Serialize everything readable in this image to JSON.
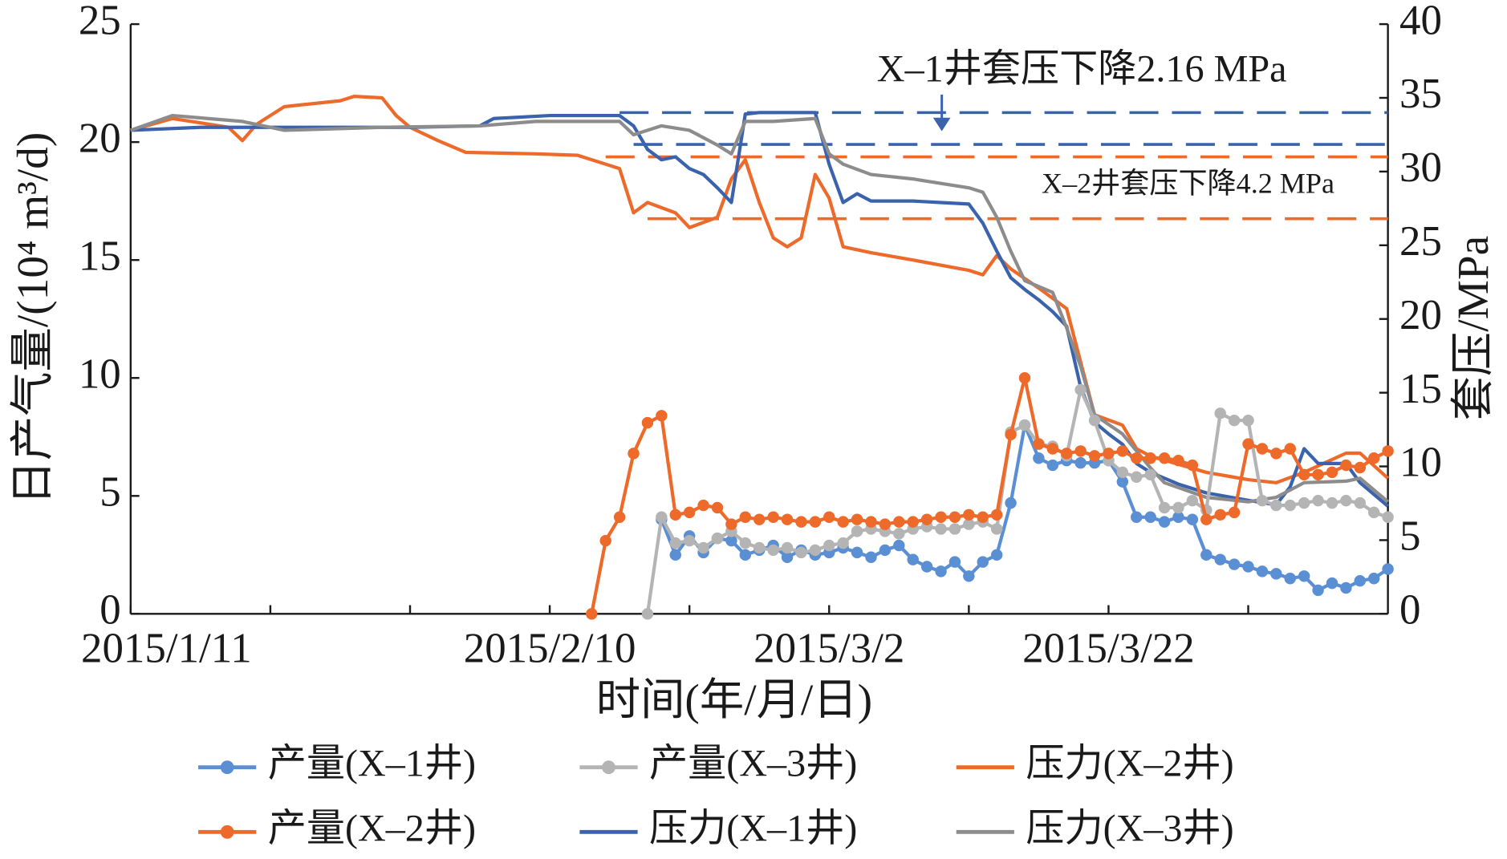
{
  "chart_data": {
    "type": "line",
    "xlabel": "时间(年/月/日)",
    "ylabel": "日产气量/(10⁴ m³/d)",
    "y2label": "套压/MPa",
    "xlim": [
      "2015/1/11",
      "2015/4/11"
    ],
    "xticks": [
      "2015/1/11",
      "2015/2/10",
      "2015/3/2",
      "2015/3/22"
    ],
    "xminor_ticks": [
      "2015/1/21",
      "2015/1/31",
      "2015/2/20",
      "2015/3/12",
      "2015/4/1"
    ],
    "ylim": [
      0,
      25
    ],
    "yticks": [
      0,
      5,
      10,
      15,
      20,
      25
    ],
    "y2lim": [
      0,
      40
    ],
    "y2ticks": [
      0,
      5,
      10,
      15,
      20,
      25,
      30,
      35,
      40
    ],
    "series": [
      {
        "name": "产量(X–1井)",
        "color": "#5b8fd4",
        "marker": true,
        "x": [
          "2015/2/18",
          "2015/2/19",
          "2015/2/20",
          "2015/2/21",
          "2015/2/22",
          "2015/2/23",
          "2015/2/24",
          "2015/2/25",
          "2015/2/26",
          "2015/2/27",
          "2015/2/28",
          "2015/3/1",
          "2015/3/2",
          "2015/3/3",
          "2015/3/4",
          "2015/3/5",
          "2015/3/6",
          "2015/3/7",
          "2015/3/8",
          "2015/3/9",
          "2015/3/10",
          "2015/3/11",
          "2015/3/12",
          "2015/3/13",
          "2015/3/14",
          "2015/3/15",
          "2015/3/16",
          "2015/3/17",
          "2015/3/18",
          "2015/3/19",
          "2015/3/20",
          "2015/3/21",
          "2015/3/22",
          "2015/3/23",
          "2015/3/24",
          "2015/3/25",
          "2015/3/26",
          "2015/3/27",
          "2015/3/28",
          "2015/3/29",
          "2015/3/30",
          "2015/3/31",
          "2015/4/1",
          "2015/4/2",
          "2015/4/3",
          "2015/4/4",
          "2015/4/5",
          "2015/4/6",
          "2015/4/7",
          "2015/4/8",
          "2015/4/9",
          "2015/4/10",
          "2015/4/11"
        ],
        "values": [
          4.0,
          2.5,
          3.3,
          2.6,
          3.2,
          3.1,
          2.5,
          2.7,
          2.9,
          2.4,
          2.7,
          2.5,
          2.6,
          2.8,
          2.6,
          2.4,
          2.7,
          2.9,
          2.3,
          2.0,
          1.8,
          2.2,
          1.6,
          2.2,
          2.5,
          4.7,
          8.0,
          6.6,
          6.3,
          6.5,
          6.4,
          6.4,
          6.5,
          5.6,
          4.1,
          4.1,
          3.9,
          4.1,
          4.0,
          2.5,
          2.3,
          2.1,
          2.0,
          1.8,
          1.7,
          1.5,
          1.6,
          1.0,
          1.3,
          1.1,
          1.4,
          1.5,
          1.9
        ]
      },
      {
        "name": "产量(X–3井)",
        "color": "#b4b4b4",
        "marker": true,
        "x": [
          "2015/2/17",
          "2015/2/18",
          "2015/2/19",
          "2015/2/20",
          "2015/2/21",
          "2015/2/22",
          "2015/2/23",
          "2015/2/24",
          "2015/2/25",
          "2015/2/26",
          "2015/2/27",
          "2015/2/28",
          "2015/3/1",
          "2015/3/2",
          "2015/3/3",
          "2015/3/4",
          "2015/3/5",
          "2015/3/6",
          "2015/3/7",
          "2015/3/8",
          "2015/3/9",
          "2015/3/10",
          "2015/3/11",
          "2015/3/12",
          "2015/3/13",
          "2015/3/14",
          "2015/3/15",
          "2015/3/16",
          "2015/3/17",
          "2015/3/18",
          "2015/3/19",
          "2015/3/20",
          "2015/3/21",
          "2015/3/22",
          "2015/3/23",
          "2015/3/24",
          "2015/3/25",
          "2015/3/26",
          "2015/3/27",
          "2015/3/28",
          "2015/3/29",
          "2015/3/30",
          "2015/3/31",
          "2015/4/1",
          "2015/4/2",
          "2015/4/3",
          "2015/4/4",
          "2015/4/5",
          "2015/4/6",
          "2015/4/7",
          "2015/4/8",
          "2015/4/9",
          "2015/4/10",
          "2015/4/11"
        ],
        "values": [
          0,
          4.1,
          3.0,
          3.1,
          2.8,
          3.2,
          3.5,
          3.0,
          2.8,
          2.7,
          2.8,
          2.6,
          2.7,
          2.9,
          3.0,
          3.5,
          3.6,
          3.5,
          3.4,
          3.6,
          3.7,
          3.6,
          3.6,
          3.8,
          3.9,
          3.6,
          7.7,
          8.0,
          7.2,
          7.1,
          6.7,
          9.5,
          8.2,
          6.5,
          6.0,
          5.8,
          5.9,
          4.5,
          4.5,
          4.8,
          4.4,
          8.5,
          8.2,
          8.2,
          4.8,
          4.6,
          4.6,
          4.7,
          4.8,
          4.7,
          4.8,
          4.7,
          4.3,
          4.1
        ]
      },
      {
        "name": "压力(X–2井)",
        "color": "#ed6a2a",
        "marker": false,
        "axis": "y2",
        "x": [
          "2015/1/11",
          "2015/1/14",
          "2015/1/16",
          "2015/1/18",
          "2015/1/19",
          "2015/1/20",
          "2015/1/22",
          "2015/1/26",
          "2015/1/27",
          "2015/1/29",
          "2015/1/30",
          "2015/1/31",
          "2015/2/2",
          "2015/2/4",
          "2015/2/9",
          "2015/2/12",
          "2015/2/15",
          "2015/2/16",
          "2015/2/17",
          "2015/2/19",
          "2015/2/20",
          "2015/2/22",
          "2015/2/23",
          "2015/2/24",
          "2015/2/25",
          "2015/2/26",
          "2015/2/27",
          "2015/2/28",
          "2015/3/1",
          "2015/3/2",
          "2015/3/3",
          "2015/3/5",
          "2015/3/8",
          "2015/3/12",
          "2015/3/13",
          "2015/3/14",
          "2015/3/15",
          "2015/3/17",
          "2015/3/19",
          "2015/3/20",
          "2015/3/21",
          "2015/3/23",
          "2015/3/24",
          "2015/3/25",
          "2015/3/29",
          "2015/4/1",
          "2015/4/3",
          "2015/4/5",
          "2015/4/8",
          "2015/4/9",
          "2015/4/11"
        ],
        "values": [
          32.8,
          33.6,
          33.3,
          33.0,
          32.1,
          33.2,
          34.4,
          34.8,
          35.1,
          35.0,
          33.8,
          33.0,
          32.1,
          31.3,
          31.2,
          31.1,
          30.2,
          27.2,
          27.9,
          27.2,
          26.2,
          26.9,
          29.5,
          30.8,
          27.9,
          25.5,
          24.9,
          25.5,
          29.8,
          28.2,
          24.9,
          24.5,
          24.0,
          23.3,
          23.0,
          24.3,
          23.4,
          22.1,
          20.7,
          17.1,
          13.5,
          12.8,
          11.2,
          10.7,
          9.6,
          9.1,
          8.9,
          9.6,
          10.9,
          10.9,
          9.2
        ]
      },
      {
        "name": "产量(X–2井)",
        "color": "#ed6a2a",
        "marker": true,
        "x": [
          "2015/2/13",
          "2015/2/14",
          "2015/2/15",
          "2015/2/16",
          "2015/2/17",
          "2015/2/18",
          "2015/2/19",
          "2015/2/20",
          "2015/2/21",
          "2015/2/22",
          "2015/2/23",
          "2015/2/24",
          "2015/2/25",
          "2015/2/26",
          "2015/2/27",
          "2015/2/28",
          "2015/3/1",
          "2015/3/2",
          "2015/3/3",
          "2015/3/4",
          "2015/3/5",
          "2015/3/6",
          "2015/3/7",
          "2015/3/8",
          "2015/3/9",
          "2015/3/10",
          "2015/3/11",
          "2015/3/12",
          "2015/3/13",
          "2015/3/14",
          "2015/3/15",
          "2015/3/16",
          "2015/3/17",
          "2015/3/18",
          "2015/3/19",
          "2015/3/20",
          "2015/3/21",
          "2015/3/22",
          "2015/3/23",
          "2015/3/24",
          "2015/3/25",
          "2015/3/26",
          "2015/3/27",
          "2015/3/28",
          "2015/3/29",
          "2015/3/30",
          "2015/3/31",
          "2015/4/1",
          "2015/4/2",
          "2015/4/3",
          "2015/4/4",
          "2015/4/5",
          "2015/4/6",
          "2015/4/7",
          "2015/4/8",
          "2015/4/9",
          "2015/4/10",
          "2015/4/11"
        ],
        "values": [
          0,
          3.1,
          4.1,
          6.8,
          8.1,
          8.4,
          4.2,
          4.3,
          4.6,
          4.5,
          3.8,
          4.1,
          4.0,
          4.1,
          4.0,
          3.9,
          3.9,
          4.1,
          3.9,
          4.0,
          3.9,
          3.8,
          3.9,
          3.9,
          4.0,
          4.1,
          4.1,
          4.2,
          4.1,
          4.2,
          7.6,
          10.0,
          7.2,
          7.0,
          6.8,
          6.9,
          6.7,
          6.8,
          6.9,
          6.6,
          6.6,
          6.6,
          6.5,
          6.3,
          4.0,
          4.2,
          4.3,
          7.2,
          7.0,
          6.8,
          7.0,
          5.9,
          5.9,
          6.0,
          6.3,
          6.2,
          6.6,
          6.9
        ]
      },
      {
        "name": "压力(X–1井)",
        "color": "#3b63ad",
        "marker": false,
        "axis": "y2",
        "x": [
          "2015/1/11",
          "2015/1/16",
          "2015/1/23",
          "2015/1/31",
          "2015/2/5",
          "2015/2/6",
          "2015/2/10",
          "2015/2/15",
          "2015/2/16",
          "2015/2/17",
          "2015/2/18",
          "2015/2/19",
          "2015/2/20",
          "2015/2/21",
          "2015/2/22",
          "2015/2/23",
          "2015/2/24",
          "2015/2/25",
          "2015/3/1",
          "2015/3/2",
          "2015/3/3",
          "2015/3/4",
          "2015/3/5",
          "2015/3/8",
          "2015/3/12",
          "2015/3/13",
          "2015/3/14",
          "2015/3/15",
          "2015/3/16",
          "2015/3/17",
          "2015/3/18",
          "2015/3/19",
          "2015/3/20",
          "2015/3/21",
          "2015/3/22",
          "2015/3/23",
          "2015/3/24",
          "2015/3/25",
          "2015/3/27",
          "2015/3/29",
          "2015/4/1",
          "2015/4/3",
          "2015/4/4",
          "2015/4/5",
          "2015/4/6",
          "2015/4/8",
          "2015/4/9",
          "2015/4/11"
        ],
        "values": [
          32.8,
          33.0,
          33.0,
          33.0,
          33.1,
          33.6,
          33.8,
          33.8,
          33.1,
          31.5,
          30.8,
          31.0,
          30.2,
          29.8,
          28.9,
          27.9,
          33.9,
          34.0,
          34.0,
          30.5,
          27.9,
          28.5,
          28.0,
          28.0,
          27.8,
          26.5,
          24.6,
          22.8,
          22.0,
          21.3,
          20.5,
          19.5,
          15.4,
          13.0,
          12.2,
          11.5,
          10.2,
          9.6,
          8.8,
          8.2,
          7.7,
          7.4,
          8.6,
          11.2,
          10.2,
          10.2,
          8.9,
          7.3
        ]
      },
      {
        "name": "压力(X–3井)",
        "color": "#8c8c8c",
        "marker": false,
        "axis": "y2",
        "x": [
          "2015/1/11",
          "2015/1/14",
          "2015/1/19",
          "2015/1/22",
          "2015/1/29",
          "2015/2/5",
          "2015/2/9",
          "2015/2/15",
          "2015/2/16",
          "2015/2/18",
          "2015/2/20",
          "2015/2/22",
          "2015/2/23",
          "2015/2/24",
          "2015/2/26",
          "2015/3/1",
          "2015/3/2",
          "2015/3/3",
          "2015/3/5",
          "2015/3/8",
          "2015/3/12",
          "2015/3/13",
          "2015/3/14",
          "2015/3/15",
          "2015/3/16",
          "2015/3/18",
          "2015/3/19",
          "2015/3/20",
          "2015/3/21",
          "2015/3/23",
          "2015/3/25",
          "2015/3/26",
          "2015/3/29",
          "2015/4/1",
          "2015/4/3",
          "2015/4/5",
          "2015/4/8",
          "2015/4/9",
          "2015/4/11"
        ],
        "values": [
          32.8,
          33.8,
          33.4,
          32.8,
          33.0,
          33.1,
          33.4,
          33.4,
          32.5,
          33.1,
          32.8,
          31.8,
          31.2,
          33.4,
          33.4,
          33.6,
          31.2,
          30.5,
          29.8,
          29.5,
          28.9,
          28.6,
          26.9,
          24.6,
          22.6,
          21.8,
          19.4,
          16.8,
          13.5,
          12.2,
          9.9,
          8.9,
          7.9,
          7.6,
          7.9,
          8.9,
          9.0,
          9.2,
          7.6
        ]
      }
    ],
    "reference_lines": [
      {
        "value": 34.0,
        "from": "2015/2/15",
        "color": "#3b63ad"
      },
      {
        "value": 31.84,
        "from": "2015/2/16",
        "color": "#3b63ad"
      },
      {
        "value": 31.0,
        "from": "2015/2/14",
        "color": "#ed6a2a"
      },
      {
        "value": 26.8,
        "from": "2015/2/17",
        "color": "#ed6a2a"
      }
    ],
    "annotations": [
      {
        "text": "X–1井套压下降2.16 MPa",
        "color": "#3b63ad"
      },
      {
        "text": "X–2井套压下降4.2 MPa",
        "color": "#ed6a2a"
      }
    ]
  }
}
